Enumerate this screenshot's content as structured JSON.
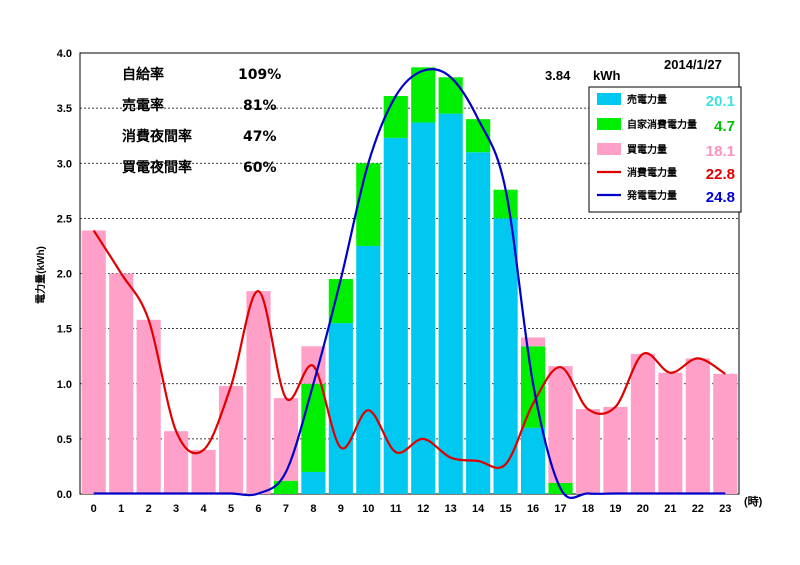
{
  "colors": {
    "sold": "#00C8F0",
    "self_consumed": "#00EE00",
    "bought": "#FFA0C8",
    "consumption_line": "#E00000",
    "generation_line": "#0000C8"
  },
  "stats": [
    {
      "label": "自給率",
      "value": "109%"
    },
    {
      "label": "売電率",
      "value": "81%"
    },
    {
      "label": "消費夜間率",
      "value": "47%"
    },
    {
      "label": "買電夜間率",
      "value": "60%"
    }
  ],
  "peak_label": {
    "value": "3.84",
    "unit": "kWh"
  },
  "date": "2014/1/27",
  "legend": [
    {
      "key": "sold",
      "label": "売電力量",
      "value": "20.1",
      "value_color": "#40E0E0",
      "kind": "box"
    },
    {
      "key": "self_consumed",
      "label": "自家消費電力量",
      "value": "4.7",
      "value_color": "#00C000",
      "kind": "box"
    },
    {
      "key": "bought",
      "label": "買電力量",
      "value": "18.1",
      "value_color": "#FF90C0",
      "kind": "box"
    },
    {
      "key": "consumption_line",
      "label": "消費電力量",
      "value": "22.8",
      "value_color": "#E00000",
      "kind": "line"
    },
    {
      "key": "generation_line",
      "label": "発電電力量",
      "value": "24.8",
      "value_color": "#0000D0",
      "kind": "line"
    }
  ],
  "chart_data": {
    "type": "bar",
    "categories": [
      "0",
      "1",
      "2",
      "3",
      "4",
      "5",
      "6",
      "7",
      "8",
      "9",
      "10",
      "11",
      "12",
      "13",
      "14",
      "15",
      "16",
      "17",
      "18",
      "19",
      "20",
      "21",
      "22",
      "23"
    ],
    "xlabel": "(時)",
    "ylabel": "電力量(kWh)",
    "ylim": [
      0,
      4.0
    ],
    "yticks": [
      "0.0",
      "0.5",
      "1.0",
      "1.5",
      "2.0",
      "2.5",
      "3.0",
      "3.5",
      "4.0"
    ],
    "grid": true,
    "legend_position": "top-right",
    "series": [
      {
        "name": "売電力量",
        "type": "bar",
        "color_key": "sold",
        "values": [
          0,
          0,
          0,
          0,
          0,
          0,
          0,
          0,
          0.2,
          1.55,
          2.25,
          3.23,
          3.37,
          3.45,
          3.1,
          2.5,
          0.6,
          0,
          0,
          0,
          0,
          0,
          0,
          0
        ]
      },
      {
        "name": "自家消費電力量",
        "type": "bar",
        "color_key": "self_consumed",
        "values": [
          0,
          0,
          0,
          0,
          0,
          0,
          0,
          0.12,
          0.8,
          0.4,
          0.75,
          0.38,
          0.5,
          0.33,
          0.3,
          0.26,
          0.74,
          0.1,
          0,
          0,
          0,
          0,
          0,
          0
        ]
      },
      {
        "name": "買電力量",
        "type": "bar",
        "color_key": "bought",
        "values": [
          2.39,
          2.0,
          1.58,
          0.57,
          0.4,
          0.98,
          1.84,
          0.75,
          0.34,
          0,
          0,
          0,
          0,
          0,
          0,
          0,
          0.08,
          1.06,
          0.77,
          0.79,
          1.27,
          1.1,
          1.23,
          1.09
        ]
      },
      {
        "name": "消費電力量",
        "type": "line",
        "color_key": "consumption_line",
        "values": [
          2.39,
          2.0,
          1.58,
          0.57,
          0.4,
          0.98,
          1.84,
          0.87,
          1.16,
          0.42,
          0.76,
          0.38,
          0.5,
          0.33,
          0.3,
          0.27,
          0.82,
          1.15,
          0.77,
          0.79,
          1.27,
          1.1,
          1.23,
          1.09
        ]
      },
      {
        "name": "発電電力量",
        "type": "line",
        "color_key": "generation_line",
        "values": [
          0,
          0,
          0,
          0,
          0,
          0,
          0,
          0.2,
          1.0,
          1.95,
          3.0,
          3.61,
          3.84,
          3.78,
          3.4,
          2.76,
          1.0,
          0.05,
          0,
          0,
          0,
          0,
          0,
          0
        ]
      }
    ]
  }
}
